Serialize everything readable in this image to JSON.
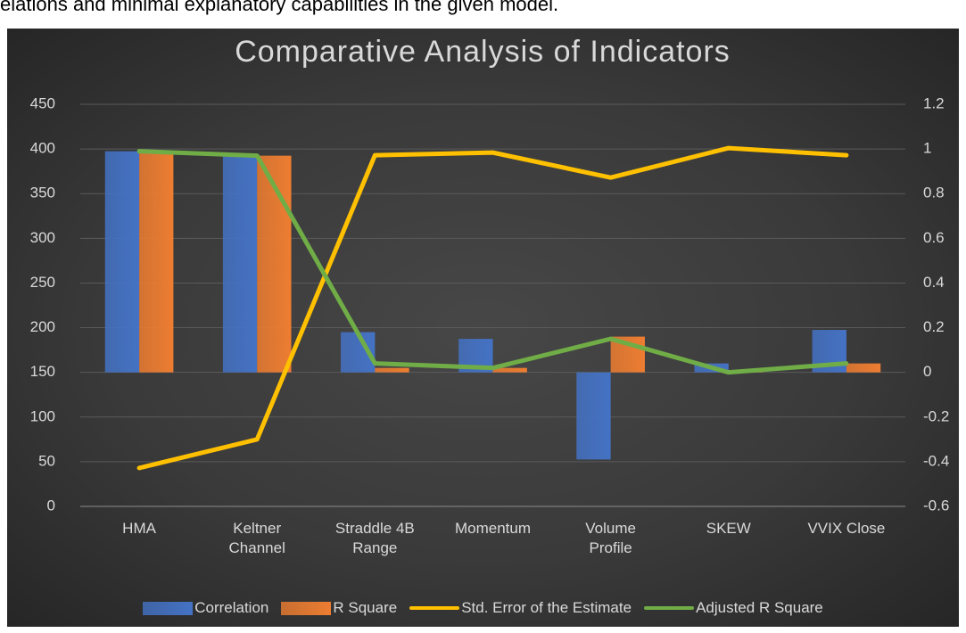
{
  "header_text": "elations and minimal explanatory capabilities in the given model.",
  "chart_data": {
    "type": "combo",
    "title": "Comparative Analysis of Indicators",
    "categories": [
      "HMA",
      "Keltner Channel",
      "Straddle 4B Range",
      "Momentum",
      "Volume Profile",
      "SKEW",
      "VVIX Close"
    ],
    "series": [
      {
        "name": "Correlation",
        "type": "bar",
        "axis": "y2",
        "color": "#4472c4",
        "values": [
          0.99,
          0.98,
          0.18,
          0.15,
          -0.39,
          0.04,
          0.19
        ]
      },
      {
        "name": "R Square",
        "type": "bar",
        "axis": "y2",
        "color": "#ed7d31",
        "values": [
          0.99,
          0.97,
          0.02,
          0.02,
          0.16,
          0.01,
          0.04
        ]
      },
      {
        "name": "Std. Error of the Estimate",
        "type": "line",
        "color": "#ffc000",
        "values": [
          43,
          75,
          393,
          396,
          368,
          401,
          393
        ]
      },
      {
        "name": "Adjusted R Square",
        "type": "line",
        "axis": "y2",
        "color": "#70ad47",
        "values": [
          0.99,
          0.97,
          0.04,
          0.02,
          0.15,
          0,
          0.04
        ]
      }
    ],
    "ylim": [
      0,
      450
    ],
    "yticks": [
      0,
      50,
      100,
      150,
      200,
      250,
      300,
      350,
      400,
      450
    ],
    "y2lim": [
      -0.6,
      1.2
    ],
    "y2ticks": [
      -0.6,
      -0.4,
      -0.2,
      0,
      0.2,
      0.4,
      0.6,
      0.8,
      1,
      1.2
    ],
    "grid": true,
    "legend": "bottom"
  }
}
